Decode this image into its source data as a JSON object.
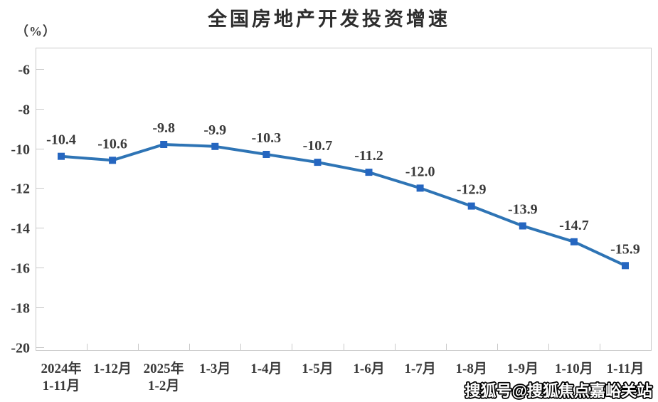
{
  "header": {
    "title": "全国房地产开发投资增速",
    "unit_label": "（%）"
  },
  "watermark": "搜狐号@搜狐焦点嘉峪关站",
  "chart_data": {
    "type": "line",
    "title": "全国房地产开发投资增速",
    "ylabel": "（%）",
    "xlabel": "",
    "categories": [
      "2024年\n1-11月",
      "1-12月",
      "2025年\n1-2月",
      "1-3月",
      "1-4月",
      "1-5月",
      "1-6月",
      "1-7月",
      "1-8月",
      "1-9月",
      "1-10月",
      "1-11月"
    ],
    "values": [
      -10.4,
      -10.6,
      -9.8,
      -9.9,
      -10.3,
      -10.7,
      -11.2,
      -12.0,
      -12.9,
      -13.9,
      -14.7,
      -15.9
    ],
    "data_labels": [
      "-10.4",
      "-10.6",
      "-9.8",
      "-9.9",
      "-10.3",
      "-10.7",
      "-11.2",
      "-12.0",
      "-12.9",
      "-13.9",
      "-14.7",
      "-15.9"
    ],
    "y_ticks": [
      -6,
      -8,
      -10,
      -12,
      -14,
      -16,
      -18,
      -20
    ],
    "ylim": [
      -20.15,
      -4.93
    ],
    "grid": false,
    "legend": false,
    "marker_shape": "square",
    "line_color": "#2E74B5",
    "marker_color": "#2566C0",
    "axis_color": "#c9c9c9",
    "text_color": "#3a3a3a"
  }
}
